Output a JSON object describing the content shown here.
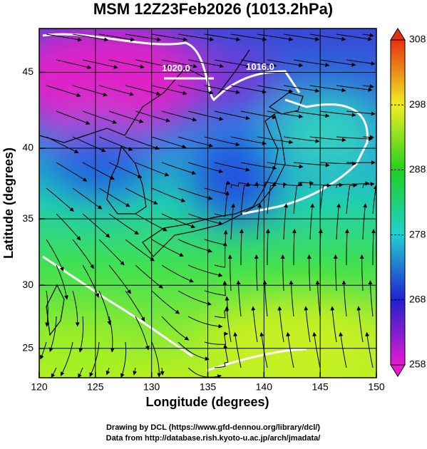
{
  "chart_data": {
    "type": "map",
    "title": "MSM 12Z23Feb2026 (1013.2hPa)",
    "x_label": "Longitude (degrees)",
    "y_label": "Latitude  (degrees)",
    "xlim": [
      120,
      150
    ],
    "ylim": [
      22.6,
      47.7
    ],
    "xticks": [
      120,
      125,
      130,
      135,
      140,
      145,
      150
    ],
    "yticks": [
      25,
      30,
      35,
      40,
      45
    ],
    "grid": true,
    "projection": "mercator",
    "contour_labels": [
      "1020.0",
      "1016.0"
    ],
    "colorbar": {
      "lim": [
        258,
        308
      ],
      "ticks": [
        258,
        268,
        278,
        288,
        298,
        308
      ],
      "colors": [
        "#e81ad0",
        "#2020d0",
        "#20d0d0",
        "#20d020",
        "#f0f020",
        "#e83010"
      ]
    }
  },
  "credits": [
    "Drawing by DCL (https://www.gfd-dennou.org/library/dcl/)",
    "Data from http://database.rish.kyoto-u.ac.jp/arch/jmadata/"
  ]
}
